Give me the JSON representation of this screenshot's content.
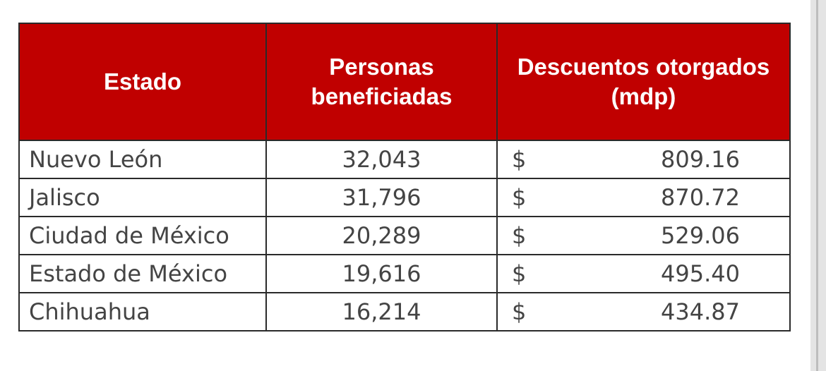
{
  "chart_data": {
    "type": "table",
    "columns": [
      "Estado",
      "Personas\nbeneficiadas",
      "Descuentos otorgados\n(mdp)"
    ],
    "currency_symbol": "$",
    "rows": [
      {
        "state": "Nuevo León",
        "people": "32,043",
        "discount": "809.16"
      },
      {
        "state": "Jalisco",
        "people": "31,796",
        "discount": "870.72"
      },
      {
        "state": "Ciudad de México",
        "people": "20,289",
        "discount": "529.06"
      },
      {
        "state": "Estado de México",
        "people": "19,616",
        "discount": "495.40"
      },
      {
        "state": "Chihuahua",
        "people": "16,214",
        "discount": "434.87"
      }
    ],
    "colors": {
      "header_background": "#c00000",
      "header_text": "#ffffff",
      "body_text": "#444444",
      "border": "#2a2a2a"
    }
  }
}
